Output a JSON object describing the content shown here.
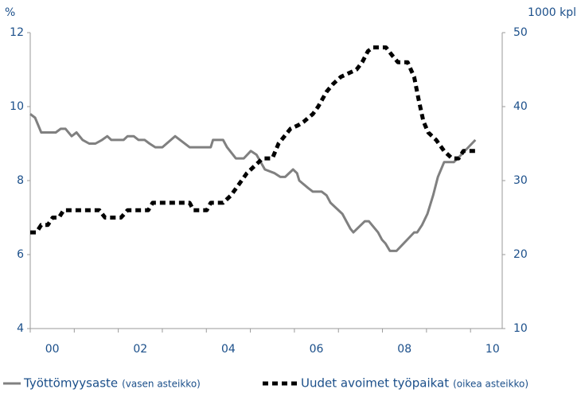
{
  "chart_data": {
    "type": "line",
    "left_unit": "%",
    "right_unit": "1000 kpl",
    "ylim": [
      4,
      12
    ],
    "yticks": [
      4,
      6,
      8,
      10,
      12
    ],
    "y2lim": [
      10,
      50
    ],
    "y2ticks": [
      10,
      20,
      30,
      40,
      50
    ],
    "xlim": [
      2000,
      2010.72
    ],
    "xticks": [
      {
        "value": 2000.5,
        "label": "00"
      },
      {
        "value": 2002.5,
        "label": "02"
      },
      {
        "value": 2004.5,
        "label": "04"
      },
      {
        "value": 2006.5,
        "label": "06"
      },
      {
        "value": 2008.5,
        "label": "08"
      },
      {
        "value": 2010.5,
        "label": "10"
      }
    ],
    "xminor_ticks": [
      2000,
      2001,
      2002,
      2003,
      2004,
      2005,
      2006,
      2007,
      2008,
      2009,
      2010
    ],
    "grid": false,
    "series": [
      {
        "name": "Työttömyysaste",
        "note": "(vasen asteikko)",
        "color": "#808080",
        "style": "solid",
        "axis": "y",
        "x": [
          2000.0,
          2000.11,
          2000.25,
          2000.58,
          2000.69,
          2000.8,
          2000.94,
          2001.05,
          2001.19,
          2001.34,
          2001.48,
          2001.63,
          2001.75,
          2001.84,
          2002.12,
          2002.21,
          2002.35,
          2002.46,
          2002.6,
          2002.71,
          2002.84,
          2003.0,
          2003.29,
          2003.62,
          2004.1,
          2004.15,
          2004.38,
          2004.47,
          2004.67,
          2004.85,
          2005.01,
          2005.14,
          2005.33,
          2005.55,
          2005.68,
          2005.79,
          2005.97,
          2006.06,
          2006.11,
          2006.31,
          2006.42,
          2006.62,
          2006.73,
          2006.82,
          2007.09,
          2007.27,
          2007.34,
          2007.6,
          2007.69,
          2007.9,
          2007.99,
          2008.07,
          2008.17,
          2008.32,
          2008.72,
          2008.79,
          2008.9,
          2009.02,
          2009.15,
          2009.26,
          2009.4,
          2009.62,
          2009.71,
          2010.11
        ],
        "values": [
          9.8,
          9.7,
          9.3,
          9.3,
          9.4,
          9.4,
          9.2,
          9.3,
          9.1,
          9.0,
          9.0,
          9.1,
          9.2,
          9.1,
          9.1,
          9.2,
          9.2,
          9.1,
          9.1,
          9.0,
          8.9,
          8.9,
          9.2,
          8.9,
          8.9,
          9.1,
          9.1,
          8.9,
          8.6,
          8.6,
          8.8,
          8.7,
          8.3,
          8.2,
          8.1,
          8.1,
          8.3,
          8.2,
          8.0,
          7.8,
          7.7,
          7.7,
          7.6,
          7.4,
          7.1,
          6.7,
          6.6,
          6.9,
          6.9,
          6.6,
          6.4,
          6.3,
          6.1,
          6.1,
          6.6,
          6.6,
          6.8,
          7.1,
          7.6,
          8.1,
          8.5,
          8.5,
          8.6,
          9.1
        ]
      },
      {
        "name": "Uudet avoimet työpaikat",
        "note": "(oikea asteikko)",
        "color": "#000000",
        "style": "dashed",
        "axis": "y2",
        "x": [
          2000.0,
          2000.14,
          2000.25,
          2000.4,
          2000.51,
          2000.65,
          2000.76,
          2001.57,
          2001.7,
          2002.06,
          2002.21,
          2002.68,
          2002.78,
          2003.62,
          2003.71,
          2004.01,
          2004.1,
          2004.38,
          2004.56,
          2004.74,
          2004.92,
          2005.1,
          2005.28,
          2005.5,
          2005.64,
          2005.91,
          2006.09,
          2006.22,
          2006.42,
          2006.54,
          2006.73,
          2006.87,
          2007.05,
          2007.23,
          2007.41,
          2007.54,
          2007.67,
          2007.78,
          2008.08,
          2008.21,
          2008.35,
          2008.57,
          2008.72,
          2008.82,
          2008.93,
          2009.04,
          2009.22,
          2009.4,
          2009.58,
          2009.73,
          2009.84,
          2010.11
        ],
        "values": [
          23,
          23,
          24,
          24,
          25,
          25,
          26,
          26,
          25,
          25,
          26,
          26,
          27,
          27,
          26,
          26,
          27,
          27,
          28,
          29.5,
          31,
          32,
          33,
          33,
          35,
          37,
          37.5,
          38,
          39,
          40,
          42,
          43,
          44,
          44.5,
          45,
          46,
          47.5,
          48,
          48,
          47,
          46,
          46,
          44,
          41,
          38,
          36.5,
          35.5,
          34,
          33,
          33,
          34,
          34
        ]
      }
    ]
  }
}
